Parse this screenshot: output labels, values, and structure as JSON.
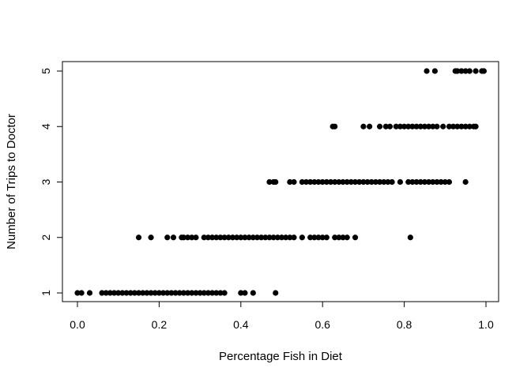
{
  "chart_data": {
    "type": "scatter",
    "title": "",
    "xlabel": "Percentage Fish in Diet",
    "ylabel": "Number of Trips to Doctor",
    "xlim": [
      0.0,
      1.0
    ],
    "ylim": [
      1,
      5
    ],
    "x_ticks": [
      "0.0",
      "0.2",
      "0.4",
      "0.6",
      "0.8",
      "1.0"
    ],
    "y_ticks": [
      "1",
      "2",
      "3",
      "4",
      "5"
    ],
    "grid": false,
    "legend": "none",
    "point_color": "#000000",
    "series": [
      {
        "points": [
          [
            0.0,
            1
          ],
          [
            0.01,
            1
          ],
          [
            0.03,
            1
          ],
          [
            0.06,
            1
          ],
          [
            0.07,
            1
          ],
          [
            0.08,
            1
          ],
          [
            0.09,
            1
          ],
          [
            0.1,
            1
          ],
          [
            0.11,
            1
          ],
          [
            0.12,
            1
          ],
          [
            0.13,
            1
          ],
          [
            0.14,
            1
          ],
          [
            0.15,
            1
          ],
          [
            0.16,
            1
          ],
          [
            0.17,
            1
          ],
          [
            0.18,
            1
          ],
          [
            0.19,
            1
          ],
          [
            0.2,
            1
          ],
          [
            0.21,
            1
          ],
          [
            0.22,
            1
          ],
          [
            0.23,
            1
          ],
          [
            0.24,
            1
          ],
          [
            0.25,
            1
          ],
          [
            0.26,
            1
          ],
          [
            0.27,
            1
          ],
          [
            0.28,
            1
          ],
          [
            0.29,
            1
          ],
          [
            0.3,
            1
          ],
          [
            0.31,
            1
          ],
          [
            0.32,
            1
          ],
          [
            0.33,
            1
          ],
          [
            0.34,
            1
          ],
          [
            0.35,
            1
          ],
          [
            0.36,
            1
          ],
          [
            0.4,
            1
          ],
          [
            0.41,
            1
          ],
          [
            0.43,
            1
          ],
          [
            0.485,
            1
          ],
          [
            0.15,
            2
          ],
          [
            0.18,
            2
          ],
          [
            0.22,
            2
          ],
          [
            0.235,
            2
          ],
          [
            0.255,
            2
          ],
          [
            0.26,
            2
          ],
          [
            0.27,
            2
          ],
          [
            0.28,
            2
          ],
          [
            0.29,
            2
          ],
          [
            0.31,
            2
          ],
          [
            0.32,
            2
          ],
          [
            0.33,
            2
          ],
          [
            0.34,
            2
          ],
          [
            0.35,
            2
          ],
          [
            0.36,
            2
          ],
          [
            0.37,
            2
          ],
          [
            0.38,
            2
          ],
          [
            0.39,
            2
          ],
          [
            0.4,
            2
          ],
          [
            0.41,
            2
          ],
          [
            0.42,
            2
          ],
          [
            0.43,
            2
          ],
          [
            0.44,
            2
          ],
          [
            0.45,
            2
          ],
          [
            0.46,
            2
          ],
          [
            0.47,
            2
          ],
          [
            0.48,
            2
          ],
          [
            0.49,
            2
          ],
          [
            0.5,
            2
          ],
          [
            0.51,
            2
          ],
          [
            0.52,
            2
          ],
          [
            0.53,
            2
          ],
          [
            0.55,
            2
          ],
          [
            0.57,
            2
          ],
          [
            0.58,
            2
          ],
          [
            0.59,
            2
          ],
          [
            0.6,
            2
          ],
          [
            0.61,
            2
          ],
          [
            0.63,
            2
          ],
          [
            0.64,
            2
          ],
          [
            0.65,
            2
          ],
          [
            0.66,
            2
          ],
          [
            0.68,
            2
          ],
          [
            0.815,
            2
          ],
          [
            0.47,
            3
          ],
          [
            0.48,
            3
          ],
          [
            0.485,
            3
          ],
          [
            0.52,
            3
          ],
          [
            0.53,
            3
          ],
          [
            0.55,
            3
          ],
          [
            0.56,
            3
          ],
          [
            0.57,
            3
          ],
          [
            0.58,
            3
          ],
          [
            0.59,
            3
          ],
          [
            0.6,
            3
          ],
          [
            0.61,
            3
          ],
          [
            0.62,
            3
          ],
          [
            0.63,
            3
          ],
          [
            0.64,
            3
          ],
          [
            0.65,
            3
          ],
          [
            0.66,
            3
          ],
          [
            0.67,
            3
          ],
          [
            0.68,
            3
          ],
          [
            0.69,
            3
          ],
          [
            0.7,
            3
          ],
          [
            0.71,
            3
          ],
          [
            0.72,
            3
          ],
          [
            0.73,
            3
          ],
          [
            0.74,
            3
          ],
          [
            0.75,
            3
          ],
          [
            0.76,
            3
          ],
          [
            0.77,
            3
          ],
          [
            0.79,
            3
          ],
          [
            0.81,
            3
          ],
          [
            0.82,
            3
          ],
          [
            0.83,
            3
          ],
          [
            0.84,
            3
          ],
          [
            0.85,
            3
          ],
          [
            0.86,
            3
          ],
          [
            0.87,
            3
          ],
          [
            0.88,
            3
          ],
          [
            0.89,
            3
          ],
          [
            0.9,
            3
          ],
          [
            0.91,
            3
          ],
          [
            0.95,
            3
          ],
          [
            0.625,
            4
          ],
          [
            0.63,
            4
          ],
          [
            0.7,
            4
          ],
          [
            0.715,
            4
          ],
          [
            0.74,
            4
          ],
          [
            0.755,
            4
          ],
          [
            0.765,
            4
          ],
          [
            0.78,
            4
          ],
          [
            0.79,
            4
          ],
          [
            0.8,
            4
          ],
          [
            0.81,
            4
          ],
          [
            0.82,
            4
          ],
          [
            0.83,
            4
          ],
          [
            0.84,
            4
          ],
          [
            0.85,
            4
          ],
          [
            0.86,
            4
          ],
          [
            0.87,
            4
          ],
          [
            0.88,
            4
          ],
          [
            0.895,
            4
          ],
          [
            0.91,
            4
          ],
          [
            0.92,
            4
          ],
          [
            0.93,
            4
          ],
          [
            0.94,
            4
          ],
          [
            0.95,
            4
          ],
          [
            0.96,
            4
          ],
          [
            0.97,
            4
          ],
          [
            0.975,
            4
          ],
          [
            0.855,
            5
          ],
          [
            0.875,
            5
          ],
          [
            0.925,
            5
          ],
          [
            0.93,
            5
          ],
          [
            0.94,
            5
          ],
          [
            0.95,
            5
          ],
          [
            0.96,
            5
          ],
          [
            0.975,
            5
          ],
          [
            0.99,
            5
          ],
          [
            0.995,
            5
          ]
        ]
      }
    ]
  }
}
